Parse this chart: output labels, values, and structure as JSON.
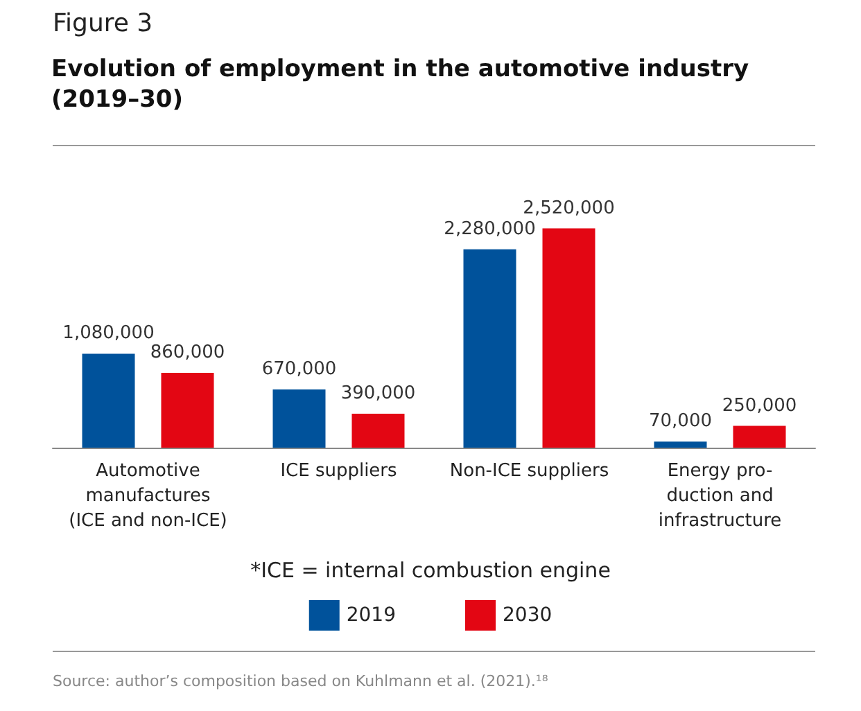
{
  "chart_data": {
    "type": "bar",
    "title": "Evolution of employment in the automotive industry (2019–30)",
    "categories": [
      "Automotive\nmanufactures\n(ICE and non-ICE)",
      "ICE suppliers",
      "Non-ICE suppliers",
      "Energy pro-\nduction and\ninfrastructure"
    ],
    "series": [
      {
        "name": "2019",
        "color": "#00529b",
        "values": [
          1080000,
          670000,
          2280000,
          70000
        ],
        "value_labels": [
          "1,080,000",
          "670,000",
          "2,280,000",
          "70,000"
        ]
      },
      {
        "name": "2030",
        "color": "#e30613",
        "values": [
          860000,
          390000,
          2520000,
          250000
        ],
        "value_labels": [
          "860,000",
          "390,000",
          "2,520,000",
          "250,000"
        ]
      }
    ],
    "legend": "bottom",
    "annotations": [
      "Figure 3",
      "*ICE = internal combustion engine",
      "Source: author’s composition based on Kuhlmann et al. (2021).¹⁸"
    ]
  }
}
